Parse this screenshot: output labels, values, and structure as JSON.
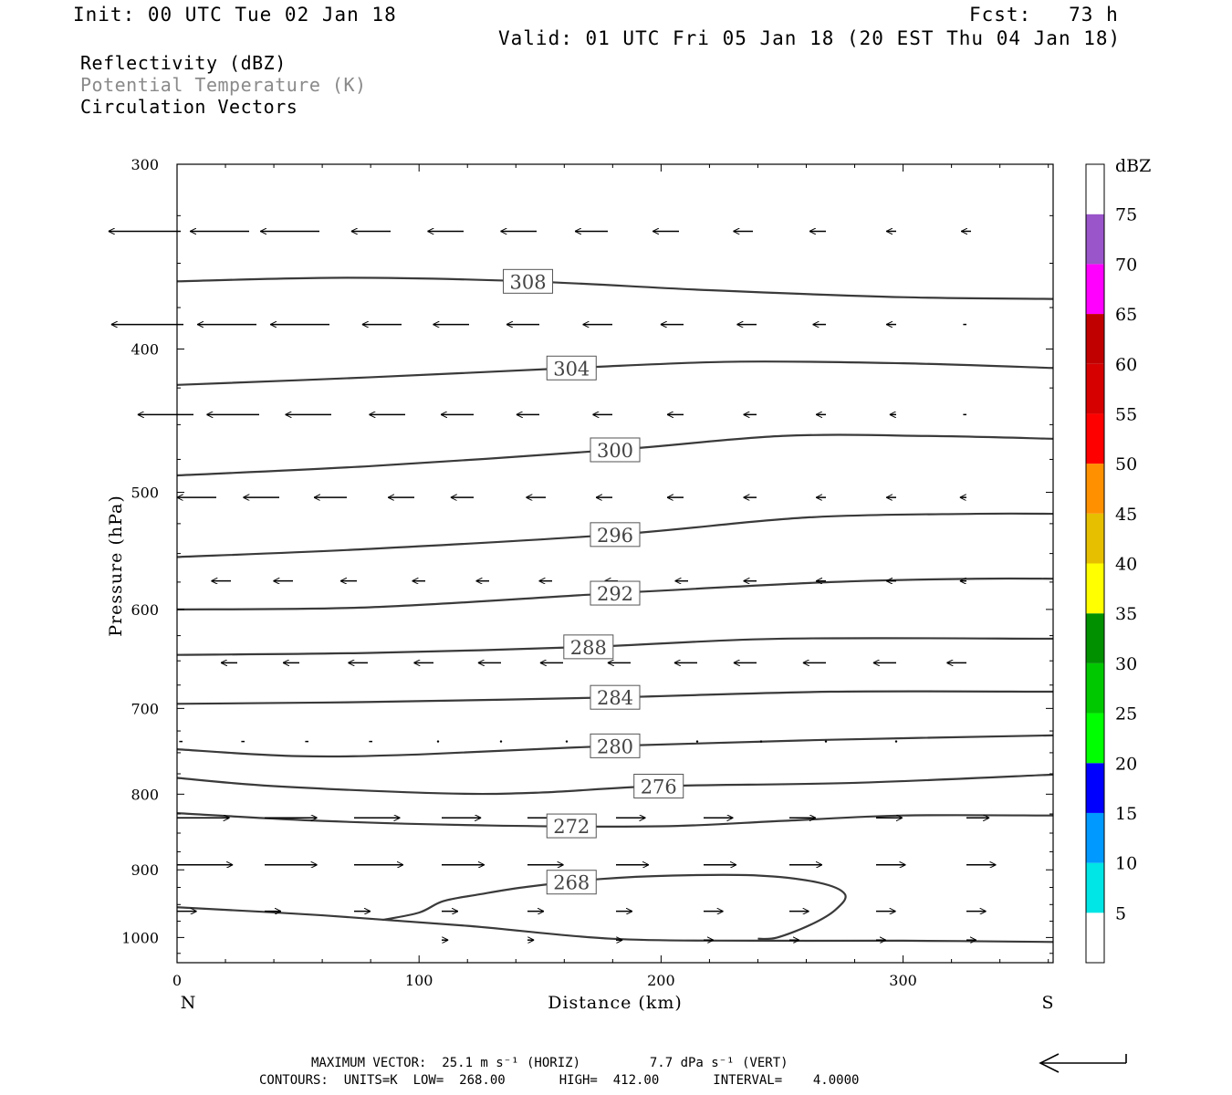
{
  "header": {
    "init": "Init: 00 UTC Tue 02 Jan 18",
    "fcst": "Fcst:   73 h",
    "valid": "Valid: 01 UTC Fri 05 Jan 18 (20 EST Thu 04 Jan 18)"
  },
  "legend": {
    "items": [
      {
        "label": "Reflectivity (dBZ)",
        "color": "#000000"
      },
      {
        "label": "Potential Temperature (K)",
        "color": "#8a8a8a"
      },
      {
        "label": "Circulation Vectors",
        "color": "#000000"
      }
    ]
  },
  "footer": {
    "line1": "MAXIMUM VECTOR:  25.1 m s⁻¹ (HORIZ)         7.7 dPa s⁻¹ (VERT)",
    "line2": "CONTOURS:  UNITS=K  LOW=  268.00       HIGH=  412.00       INTERVAL=    4.0000"
  },
  "chart_data": {
    "type": "cross-section",
    "xlabel": "Distance (km)",
    "ylabel": "Pressure (hPa)",
    "xlim": [
      0,
      362
    ],
    "ylim": [
      1040,
      300
    ],
    "y_scale": "log",
    "x_ticks": [
      0,
      100,
      200,
      300
    ],
    "y_ticks": [
      300,
      400,
      500,
      600,
      700,
      800,
      900,
      1000
    ],
    "x_end_labels": {
      "left": "N",
      "right": "S"
    },
    "contours": [
      {
        "label": "308",
        "label_x": 145,
        "points": [
          [
            0,
            360
          ],
          [
            70,
            358
          ],
          [
            145,
            360
          ],
          [
            220,
            365
          ],
          [
            300,
            369
          ],
          [
            362,
            370
          ]
        ]
      },
      {
        "label": "304",
        "label_x": 163,
        "points": [
          [
            0,
            423
          ],
          [
            80,
            418
          ],
          [
            163,
            412
          ],
          [
            230,
            408
          ],
          [
            300,
            409
          ],
          [
            362,
            412
          ]
        ]
      },
      {
        "label": "300",
        "label_x": 181,
        "points": [
          [
            0,
            487
          ],
          [
            80,
            480
          ],
          [
            181,
            468
          ],
          [
            250,
            458
          ],
          [
            310,
            458
          ],
          [
            362,
            460
          ]
        ]
      },
      {
        "label": "296",
        "label_x": 181,
        "points": [
          [
            0,
            553
          ],
          [
            80,
            546
          ],
          [
            181,
            534
          ],
          [
            260,
            520
          ],
          [
            330,
            517
          ],
          [
            362,
            517
          ]
        ]
      },
      {
        "label": "292",
        "label_x": 181,
        "points": [
          [
            0,
            600
          ],
          [
            80,
            598
          ],
          [
            181,
            585
          ],
          [
            270,
            575
          ],
          [
            330,
            572
          ],
          [
            362,
            572
          ]
        ]
      },
      {
        "label": "288",
        "label_x": 170,
        "points": [
          [
            0,
            644
          ],
          [
            80,
            642
          ],
          [
            170,
            636
          ],
          [
            250,
            628
          ],
          [
            362,
            628
          ]
        ]
      },
      {
        "label": "284",
        "label_x": 181,
        "points": [
          [
            0,
            695
          ],
          [
            80,
            693
          ],
          [
            181,
            688
          ],
          [
            270,
            682
          ],
          [
            362,
            682
          ]
        ]
      },
      {
        "label": "280",
        "label_x": 181,
        "points": [
          [
            0,
            746
          ],
          [
            50,
            754
          ],
          [
            100,
            752
          ],
          [
            181,
            742
          ],
          [
            270,
            735
          ],
          [
            362,
            730
          ]
        ]
      },
      {
        "label": "276",
        "label_x": 199,
        "points": [
          [
            0,
            780
          ],
          [
            40,
            790
          ],
          [
            110,
            799
          ],
          [
            150,
            798
          ],
          [
            199,
            790
          ],
          [
            280,
            786
          ],
          [
            362,
            776
          ]
        ]
      },
      {
        "label": "272",
        "label_x": 163,
        "points": [
          [
            0,
            824
          ],
          [
            60,
            834
          ],
          [
            130,
            840
          ],
          [
            200,
            841
          ],
          [
            250,
            834
          ],
          [
            300,
            827
          ],
          [
            362,
            827
          ]
        ]
      },
      {
        "label": "268",
        "label_x": 163,
        "points": [
          [
            85,
            973
          ],
          [
            100,
            962
          ],
          [
            110,
            945
          ],
          [
            125,
            935
          ],
          [
            145,
            924
          ],
          [
            175,
            913
          ],
          [
            205,
            908
          ],
          [
            240,
            908
          ],
          [
            265,
            918
          ],
          [
            276,
            935
          ],
          [
            272,
            958
          ],
          [
            262,
            980
          ],
          [
            248,
            1000
          ],
          [
            240,
            1002
          ]
        ]
      },
      {
        "label": "",
        "label_x": null,
        "points": [
          [
            0,
            954
          ],
          [
            60,
            966
          ],
          [
            120,
            982
          ],
          [
            180,
            1002
          ],
          [
            240,
            1005
          ],
          [
            300,
            1005
          ],
          [
            362,
            1007
          ]
        ]
      }
    ],
    "vectors": [
      {
        "y": 333,
        "x": [
          4,
          79,
          156,
          234,
          314,
          394,
          472,
          550,
          631,
          711,
          788,
          870
        ],
        "u": [
          -22,
          -18,
          -18,
          -12,
          -11,
          -11,
          -10,
          -8,
          -6,
          -5,
          -3,
          -3
        ]
      },
      {
        "y": 385,
        "x": [
          7,
          87,
          167,
          246,
          320,
          397,
          477,
          555,
          635,
          711,
          788,
          865
        ],
        "u": [
          -22,
          -18,
          -18,
          -12,
          -11,
          -10,
          -9,
          -7,
          -6,
          -4,
          -3,
          -1
        ]
      },
      {
        "y": 443,
        "x": [
          18,
          90,
          169,
          250,
          325,
          397,
          477,
          555,
          635,
          711,
          788,
          865
        ],
        "u": [
          -17,
          -16,
          -14,
          -11,
          -10,
          -7,
          -6,
          -5,
          -4,
          -3,
          -2,
          -1
        ]
      },
      {
        "y": 504,
        "x": [
          43,
          112,
          186,
          260,
          325,
          404,
          477,
          555,
          635,
          711,
          788,
          865
        ],
        "u": [
          -12,
          -11,
          -10,
          -8,
          -7,
          -6,
          -5,
          -5,
          -4,
          -3,
          -3,
          -2
        ]
      },
      {
        "y": 574,
        "x": [
          59,
          127,
          197,
          272,
          342,
          411,
          483,
          560,
          635,
          711,
          788,
          865
        ],
        "u": [
          -6,
          -6,
          -5,
          -4,
          -4,
          -4,
          -4,
          -4,
          -4,
          -3,
          -3,
          -2
        ]
      },
      {
        "y": 652,
        "x": [
          66,
          134,
          209,
          281,
          355,
          423,
          497,
          570,
          635,
          711,
          788,
          865
        ],
        "u": [
          -5,
          -5,
          -6,
          -6,
          -7,
          -7,
          -7,
          -7,
          -7,
          -7,
          -7,
          -6
        ]
      },
      {
        "y": 737,
        "x": [
          6,
          74,
          144,
          214,
          286,
          355,
          427,
          497,
          570,
          640,
          711,
          788
        ],
        "u": [
          -1,
          -1,
          -1,
          -1,
          0,
          0,
          0,
          0,
          0,
          0,
          0,
          0
        ]
      },
      {
        "y": 830,
        "x": [
          0,
          96,
          194,
          290,
          384,
          481,
          577,
          671,
          766,
          865
        ],
        "u": [
          16,
          16,
          14,
          12,
          10,
          9,
          9,
          8,
          8,
          7
        ]
      },
      {
        "y": 893,
        "x": [
          0,
          96,
          194,
          290,
          384,
          481,
          577,
          671,
          766,
          865
        ],
        "u": [
          17,
          16,
          15,
          13,
          11,
          10,
          10,
          10,
          9,
          9
        ]
      },
      {
        "y": 960,
        "x": [
          0,
          96,
          194,
          290,
          384,
          481,
          577,
          671,
          766,
          865
        ],
        "u": [
          6,
          5,
          5,
          5,
          5,
          5,
          6,
          6,
          6,
          6
        ]
      },
      {
        "y": 1004,
        "x": [
          290,
          384,
          481,
          577,
          671,
          766,
          865
        ],
        "u": [
          2,
          2,
          2,
          3,
          3,
          3,
          3
        ]
      }
    ],
    "colorbar": {
      "label": "dBZ",
      "levels": [
        5,
        10,
        15,
        20,
        25,
        30,
        35,
        40,
        45,
        50,
        55,
        60,
        65,
        70,
        75
      ],
      "colors": [
        "#ffffff",
        "#00e5e5",
        "#0099ff",
        "#0000ff",
        "#00ff00",
        "#00c800",
        "#009000",
        "#ffff00",
        "#e6c000",
        "#ff9100",
        "#ff0000",
        "#d60000",
        "#c00000",
        "#ff00ff",
        "#9955c9",
        "#ffffff"
      ]
    }
  }
}
